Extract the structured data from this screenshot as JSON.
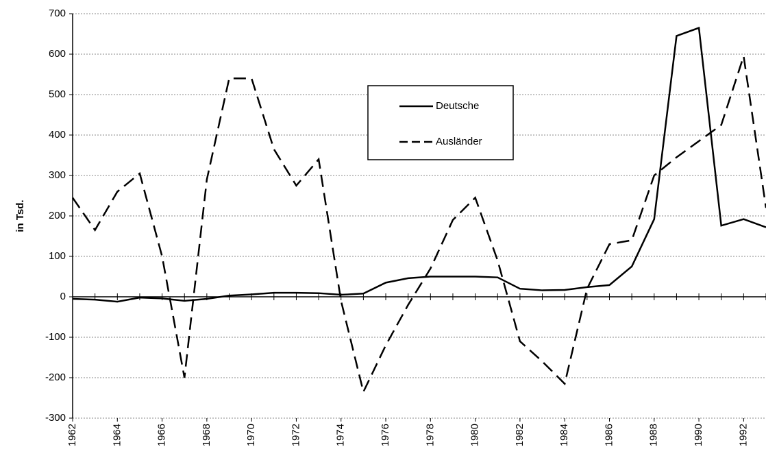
{
  "chart_data": {
    "type": "line",
    "y_label": "in Tsd.",
    "x": [
      1962,
      1963,
      1964,
      1965,
      1966,
      1967,
      1968,
      1969,
      1970,
      1971,
      1972,
      1973,
      1974,
      1975,
      1976,
      1977,
      1978,
      1979,
      1980,
      1981,
      1982,
      1983,
      1984,
      1985,
      1986,
      1987,
      1988,
      1989,
      1990,
      1991,
      1992,
      1993
    ],
    "series": [
      {
        "name": "Deutsche",
        "color": "#000000",
        "line_style": "solid",
        "values": [
          -5,
          -7,
          -12,
          -2,
          -4,
          -10,
          -5,
          3,
          6,
          10,
          10,
          9,
          5,
          8,
          35,
          46,
          50,
          50,
          50,
          48,
          20,
          16,
          17,
          24,
          29,
          75,
          192,
          645,
          665,
          176,
          192,
          172
        ]
      },
      {
        "name": "Ausländer",
        "color": "#000000",
        "line_style": "dashed",
        "values": [
          245,
          165,
          260,
          305,
          100,
          -200,
          290,
          540,
          540,
          365,
          275,
          340,
          -10,
          -235,
          -120,
          -20,
          70,
          190,
          245,
          90,
          -110,
          -160,
          -215,
          20,
          130,
          140,
          300,
          345,
          385,
          425,
          595,
          220
        ]
      }
    ],
    "xlim": [
      1962,
      1993
    ],
    "xticks": [
      1962,
      1964,
      1966,
      1968,
      1970,
      1972,
      1974,
      1976,
      1978,
      1980,
      1982,
      1984,
      1986,
      1988,
      1990,
      1992
    ],
    "ylim": [
      -300,
      700
    ],
    "yticks": [
      -300,
      -200,
      -100,
      0,
      100,
      200,
      300,
      400,
      500,
      600,
      700
    ],
    "grid": true
  }
}
